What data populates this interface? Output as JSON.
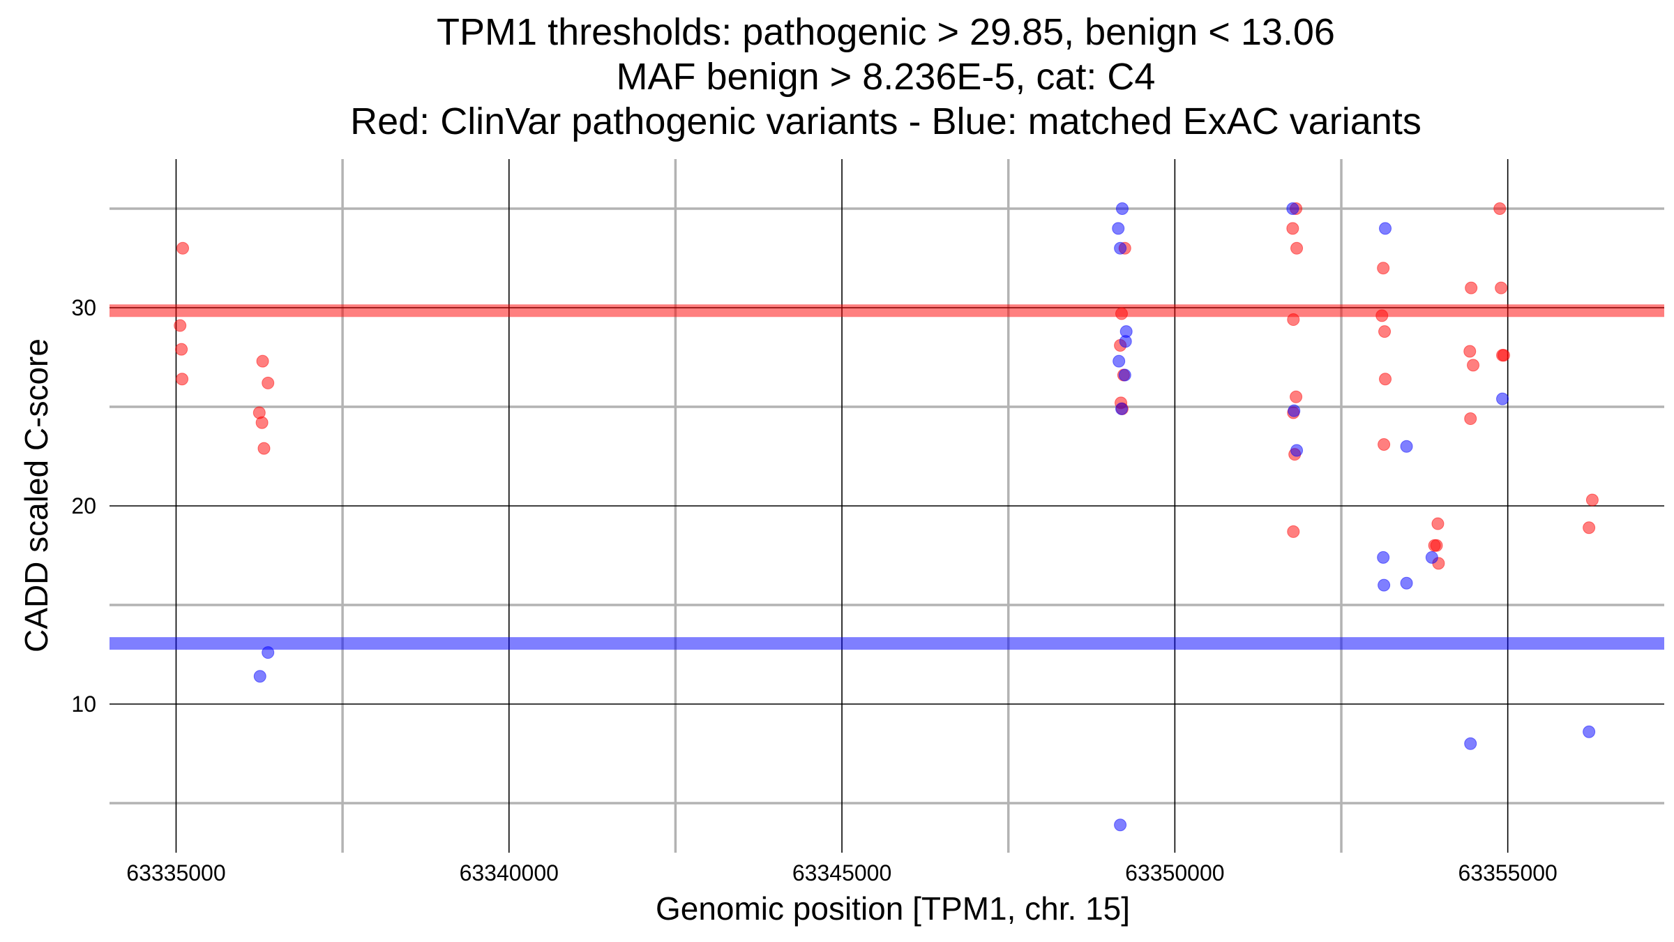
{
  "chart_data": {
    "type": "scatter",
    "title": [
      "TPM1 thresholds: pathogenic > 29.85, benign < 13.06",
      "MAF benign > 8.236E-5, cat: C4",
      "Red: ClinVar pathogenic variants - Blue: matched ExAC variants"
    ],
    "xlabel": "Genomic position [TPM1, chr. 15]",
    "ylabel": "CADD scaled C-score",
    "xlim": [
      63334000,
      63357350
    ],
    "ylim": [
      2.5,
      37.5
    ],
    "x_ticks": [
      63335000,
      63340000,
      63345000,
      63350000,
      63355000
    ],
    "x_tick_labels": [
      "63335000",
      "63340000",
      "63345000",
      "63350000",
      "63355000"
    ],
    "y_ticks": [
      10,
      20,
      30
    ],
    "y_tick_labels": [
      "10",
      "20",
      "30"
    ],
    "x_minor_ticks": [
      63337500,
      63342500,
      63347500,
      63352500
    ],
    "y_minor_ticks": [
      5,
      15,
      25,
      35
    ],
    "grid": true,
    "thresholds": [
      {
        "name": "pathogenic",
        "value": 29.85,
        "color": "#ff0000"
      },
      {
        "name": "benign",
        "value": 13.06,
        "color": "#0000ff"
      }
    ],
    "series": [
      {
        "name": "ClinVar pathogenic variants",
        "color": "#ff0000",
        "points": [
          [
            63335100,
            33
          ],
          [
            63335060,
            29.1
          ],
          [
            63335080,
            27.9
          ],
          [
            63335090,
            26.4
          ],
          [
            63336300,
            27.3
          ],
          [
            63336380,
            26.2
          ],
          [
            63336250,
            24.7
          ],
          [
            63336290,
            24.2
          ],
          [
            63336320,
            22.9
          ],
          [
            63349250,
            33
          ],
          [
            63349200,
            29.7
          ],
          [
            63349180,
            28.1
          ],
          [
            63349230,
            26.6
          ],
          [
            63349190,
            25.2
          ],
          [
            63349210,
            24.9
          ],
          [
            63351820,
            35
          ],
          [
            63351770,
            34
          ],
          [
            63351830,
            33
          ],
          [
            63351780,
            29.4
          ],
          [
            63351820,
            25.5
          ],
          [
            63351780,
            24.7
          ],
          [
            63351800,
            22.6
          ],
          [
            63351780,
            18.7
          ],
          [
            63353130,
            32
          ],
          [
            63353110,
            29.6
          ],
          [
            63353150,
            28.8
          ],
          [
            63353160,
            26.4
          ],
          [
            63353140,
            23.1
          ],
          [
            63353950,
            19.1
          ],
          [
            63353930,
            18
          ],
          [
            63353900,
            18
          ],
          [
            63353960,
            17.1
          ],
          [
            63354450,
            31
          ],
          [
            63354430,
            27.8
          ],
          [
            63354480,
            27.1
          ],
          [
            63354440,
            24.4
          ],
          [
            63354880,
            35
          ],
          [
            63354900,
            31
          ],
          [
            63354920,
            27.6
          ],
          [
            63354940,
            27.6
          ],
          [
            63356270,
            20.3
          ],
          [
            63356220,
            18.9
          ]
        ]
      },
      {
        "name": "matched ExAC variants",
        "color": "#0000ff",
        "points": [
          [
            63336380,
            12.6
          ],
          [
            63336260,
            11.4
          ],
          [
            63349210,
            35
          ],
          [
            63349150,
            34
          ],
          [
            63349180,
            33
          ],
          [
            63349270,
            28.8
          ],
          [
            63349260,
            28.3
          ],
          [
            63349160,
            27.3
          ],
          [
            63349250,
            26.6
          ],
          [
            63349200,
            24.9
          ],
          [
            63349180,
            3.9
          ],
          [
            63351770,
            35
          ],
          [
            63351790,
            24.8
          ],
          [
            63351830,
            22.8
          ],
          [
            63353160,
            34
          ],
          [
            63353480,
            23
          ],
          [
            63353130,
            17.4
          ],
          [
            63353140,
            16
          ],
          [
            63353480,
            16.1
          ],
          [
            63353860,
            17.4
          ],
          [
            63354440,
            8
          ],
          [
            63354920,
            25.4
          ],
          [
            63356220,
            8.6
          ]
        ]
      }
    ]
  }
}
